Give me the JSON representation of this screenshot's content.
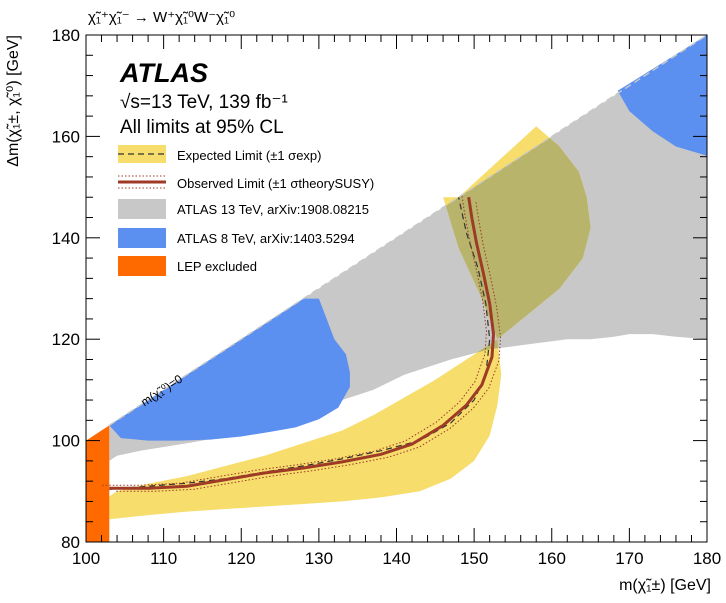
{
  "chart_data": {
    "type": "area",
    "process": "χ̃₁⁺χ̃₁⁻ → W⁺χ̃₁⁰W⁻χ̃₁⁰",
    "xlabel": "m(χ̃₁±) [GeV]",
    "ylabel": "Δm(χ̃₁±, χ̃₁⁰) [GeV]",
    "xlim": [
      100,
      180
    ],
    "ylim": [
      80,
      180
    ],
    "xticks": [
      100,
      110,
      120,
      130,
      140,
      150,
      160,
      170,
      180
    ],
    "yticks": [
      80,
      100,
      120,
      140,
      160,
      180
    ],
    "grid": false,
    "kinematic_line_label": "m(χ̃₁⁰)=0",
    "header": {
      "experiment": "ATLAS",
      "energy_lumi": "√s=13 TeV, 139 fb⁻¹",
      "cl_note": "All limits at 95% CL"
    },
    "legend_position": "top-left",
    "legend": [
      {
        "key": "expected",
        "label": "Expected Limit (±1 σexp)"
      },
      {
        "key": "observed",
        "label": "Observed Limit (±1 σtheorySUSY)"
      },
      {
        "key": "atlas13",
        "label": "ATLAS 13 TeV, arXiv:1908.08215"
      },
      {
        "key": "atlas8",
        "label": "ATLAS 8 TeV, arXiv:1403.5294"
      },
      {
        "key": "lep",
        "label": "LEP excluded"
      }
    ],
    "colors": {
      "expected_band": "#f6dd6c",
      "observed_line": "#9e3a26",
      "atlas13": "#c8c8c8",
      "atlas8": "#5b8ff0",
      "lep": "#ff6a00",
      "overlap": "#b8b46c",
      "kinematic_line": "#c8c8c8"
    },
    "series": [
      {
        "name": "ATLAS 13 TeV, arXiv:1908.08215",
        "x": [
          103,
          103,
          104,
          107,
          111,
          115,
          121,
          127,
          133,
          137,
          141,
          147,
          152,
          157,
          162,
          165,
          168,
          170,
          173,
          176,
          180,
          180
        ],
        "y": [
          93,
          96,
          97,
          98,
          99,
          100,
          102,
          104.5,
          108,
          110,
          113,
          116,
          118,
          119,
          120,
          120,
          120.5,
          121,
          121,
          120.5,
          120,
          180
        ]
      },
      {
        "name": "ATLAS 8 TeV, arXiv:1403.5294",
        "x": [
          103,
          104.5,
          108,
          112,
          116,
          120,
          124,
          127,
          130,
          132.5,
          134,
          134,
          133.5,
          132,
          130
        ],
        "y": [
          103,
          100.5,
          100,
          100,
          100.2,
          100.8,
          101.8,
          102.6,
          104.2,
          106.5,
          110.6,
          113.5,
          117,
          120,
          128
        ]
      },
      {
        "name": "ATLAS 8 TeV, arXiv:1403.5294",
        "x": [
          168.5,
          170,
          173,
          176,
          180
        ],
        "y": [
          169,
          165,
          161,
          158,
          156.2
        ]
      },
      {
        "name": "Expected Limit upper band",
        "x": [
          103,
          104,
          108,
          113,
          118,
          123,
          128,
          133,
          137,
          141,
          145,
          149,
          153,
          157,
          161,
          164,
          165,
          164.5,
          163.5,
          161,
          158
        ],
        "y": [
          89,
          90,
          91.5,
          93,
          95,
          97,
          99.5,
          102,
          105,
          108.5,
          112,
          116,
          120,
          125,
          130,
          136,
          142,
          148,
          153,
          158,
          162
        ]
      },
      {
        "name": "Expected Limit lower band",
        "x": [
          103,
          108,
          113,
          118,
          123,
          128,
          133,
          138,
          143,
          147,
          150,
          152,
          153,
          153.5,
          153,
          151,
          148,
          146
        ],
        "y": [
          84.5,
          85.3,
          86,
          86.5,
          87,
          87.5,
          88,
          88.8,
          90,
          92.5,
          96,
          101,
          107,
          113,
          120,
          128,
          138,
          148
        ]
      },
      {
        "name": "Expected Limit",
        "x": [
          103,
          108,
          113,
          118,
          123,
          128,
          133,
          138,
          143,
          147,
          150,
          151.5,
          152,
          151.5,
          150.5,
          149,
          148
        ],
        "y": [
          90.4,
          91,
          91.6,
          92.5,
          93.8,
          95,
          96.4,
          98,
          100,
          103.5,
          108,
          113,
          120,
          127,
          134,
          141,
          148
        ]
      },
      {
        "name": "Observed Limit",
        "x": [
          103,
          108,
          113,
          118,
          123,
          128,
          133,
          138,
          142,
          146,
          149,
          151,
          152.3,
          152.5,
          152,
          151.2,
          150.3,
          149.7,
          149.3
        ],
        "y": [
          90.6,
          90.6,
          91,
          92.3,
          93.6,
          94.6,
          95.8,
          97.3,
          99.3,
          103,
          107,
          111,
          116.5,
          121,
          127,
          133,
          139,
          144,
          148
        ]
      },
      {
        "name": "LEP excluded",
        "x": [
          100,
          103,
          103,
          100
        ],
        "y": [
          80,
          80,
          103,
          100
        ]
      }
    ]
  }
}
